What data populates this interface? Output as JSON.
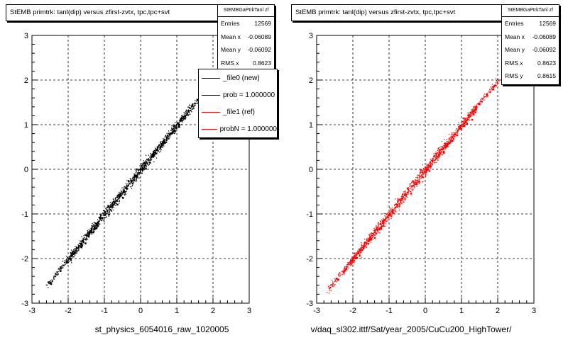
{
  "colors": {
    "new_series": "#000000",
    "ref_series": "#ff0000",
    "grid": "#000000",
    "frame": "#000000"
  },
  "chart_data": [
    {
      "type": "scatter",
      "title": "StEMB primtrk: tanl(dip) versus zfirst-zvtx, tpc,tpc+svt",
      "xlabel": "st_physics_6054016_raw_1020005",
      "ylabel": "",
      "xlim": [
        -3,
        3
      ],
      "ylim": [
        -3,
        3
      ],
      "xticks": [
        "-3",
        "-2",
        "-1",
        "0",
        "1",
        "2",
        "3"
      ],
      "yticks": [
        "-3",
        "-2",
        "-1",
        "0",
        "1",
        "2",
        "3"
      ],
      "grid": true,
      "series": [
        {
          "name": "_file0 (new)",
          "color": "#000000",
          "x": [
            -2.6,
            1.9
          ],
          "y": [
            -2.6,
            1.9
          ]
        }
      ],
      "stats": {
        "header": "StEMBGaPtrkTanl zf",
        "rows": [
          {
            "label": "Entries",
            "value": "12569"
          },
          {
            "label": "Mean x",
            "value": "-0.06089"
          },
          {
            "label": "Mean y",
            "value": "-0.06092"
          },
          {
            "label": "RMS x",
            "value": "0.8623"
          }
        ]
      },
      "legend": {
        "placement": "top-right",
        "entries": [
          {
            "text": "_file0 (new)",
            "color": "#000000"
          },
          {
            "text": "prob = 1.000000",
            "color": "#000000"
          },
          {
            "text": "_file1 (ref)",
            "color": "#ff0000"
          },
          {
            "text": "probN = 1.000000",
            "color": "#ff0000"
          }
        ]
      }
    },
    {
      "type": "scatter",
      "title": "StEMB primtrk: tanl(dip) versus zfirst-zvtx, tpc,tpc+svt",
      "xlabel": "v/daq_sl302.ittf/Sat/year_2005/CuCu200_HighTower/",
      "ylabel": "",
      "xlim": [
        -3,
        3
      ],
      "ylim": [
        -3,
        3
      ],
      "xticks": [
        "-3",
        "-2",
        "-1",
        "0",
        "1",
        "2",
        "3"
      ],
      "yticks": [
        "-3",
        "-2",
        "-1",
        "0",
        "1",
        "2",
        "3"
      ],
      "grid": true,
      "series": [
        {
          "name": "_file1 (ref)",
          "color": "#ff0000",
          "x": [
            -2.7,
            2.0
          ],
          "y": [
            -2.7,
            2.0
          ]
        }
      ],
      "stats": {
        "header": "StEMBGaPtrkTanl zf",
        "rows": [
          {
            "label": "Entries",
            "value": "12569"
          },
          {
            "label": "Mean x",
            "value": "-0.06089"
          },
          {
            "label": "Mean y",
            "value": "-0.06092"
          },
          {
            "label": "RMS x",
            "value": "0.8623"
          },
          {
            "label": "RMS y",
            "value": "0.8615"
          }
        ]
      }
    }
  ]
}
